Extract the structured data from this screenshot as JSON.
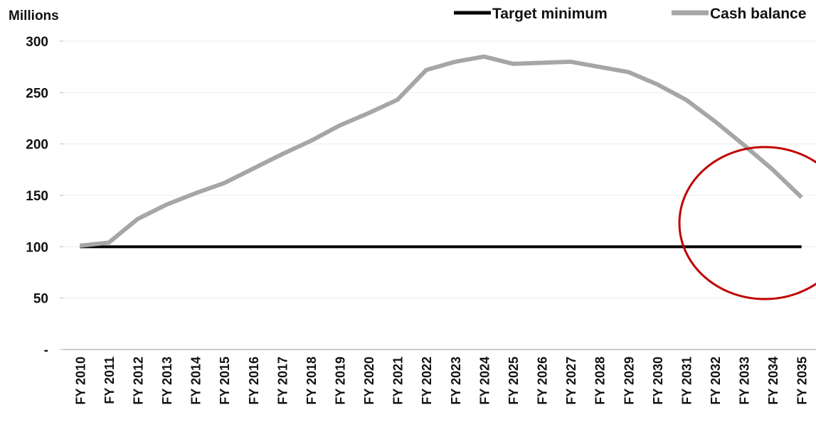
{
  "chart_data": {
    "type": "line",
    "y_axis_label": "Millions",
    "categories": [
      "FY 2010",
      "FY 2011",
      "FY 2012",
      "FY 2013",
      "FY 2014",
      "FY 2015",
      "FY 2016",
      "FY 2017",
      "FY 2018",
      "FY 2019",
      "FY 2020",
      "FY 2021",
      "FY 2022",
      "FY 2023",
      "FY 2024",
      "FY 2025",
      "FY 2026",
      "FY 2027",
      "FY 2028",
      "FY 2029",
      "FY 2030",
      "FY 2031",
      "FY 2032",
      "FY 2033",
      "FY 2034",
      "FY 2035"
    ],
    "series": [
      {
        "name": "Target minimum",
        "color": "#000000",
        "values": [
          100,
          100,
          100,
          100,
          100,
          100,
          100,
          100,
          100,
          100,
          100,
          100,
          100,
          100,
          100,
          100,
          100,
          100,
          100,
          100,
          100,
          100,
          100,
          100,
          100,
          100
        ]
      },
      {
        "name": "Cash balance",
        "color": "#a6a6a6",
        "values": [
          101,
          104,
          127,
          141,
          152,
          162,
          176,
          190,
          203,
          218,
          230,
          243,
          272,
          280,
          285,
          278,
          279,
          280,
          275,
          270,
          258,
          243,
          222,
          199,
          175,
          148
        ]
      }
    ],
    "ylim": [
      0,
      300
    ],
    "yticks": [
      {
        "value": 0,
        "label": "-"
      },
      50,
      100,
      150,
      200,
      250,
      300
    ],
    "grid": true,
    "legend": "top-right"
  }
}
